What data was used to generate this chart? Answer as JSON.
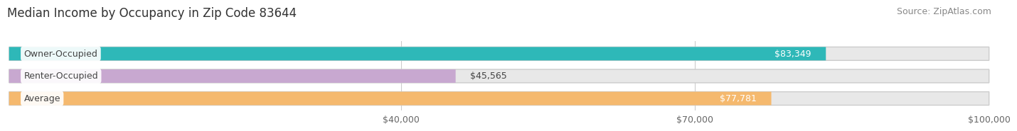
{
  "title": "Median Income by Occupancy in Zip Code 83644",
  "source": "Source: ZipAtlas.com",
  "categories": [
    "Owner-Occupied",
    "Renter-Occupied",
    "Average"
  ],
  "values": [
    83349,
    45565,
    77781
  ],
  "labels": [
    "$83,349",
    "$45,565",
    "$77,781"
  ],
  "bar_colors": [
    "#2eb8b8",
    "#c8a8d0",
    "#f5b96e"
  ],
  "xlim_min": 0,
  "xlim_max": 110000,
  "data_max": 100000,
  "xticks": [
    40000,
    70000,
    100000
  ],
  "xticklabels": [
    "$40,000",
    "$70,000",
    "$100,000"
  ],
  "title_fontsize": 12,
  "source_fontsize": 9,
  "label_fontsize": 9,
  "cat_fontsize": 9,
  "tick_fontsize": 9,
  "bar_height": 0.6,
  "background_color": "#ffffff",
  "bar_bg_color": "#e8e8e8",
  "bar_bg_border": "#d8d8d8"
}
